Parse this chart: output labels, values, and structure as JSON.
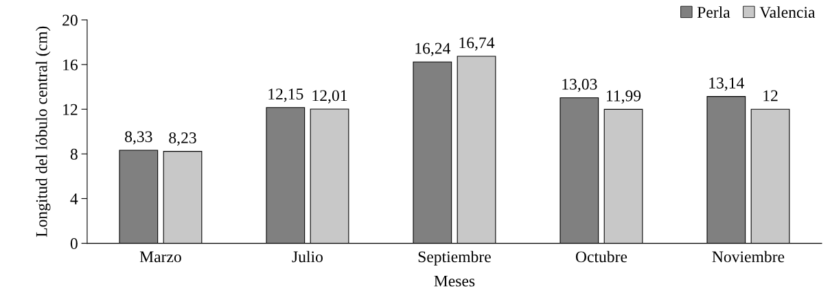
{
  "chart_data": {
    "type": "bar",
    "xlabel": "Meses",
    "ylabel": "Longitud del lóbulo central (cm)",
    "categories": [
      "Marzo",
      "Julio",
      "Septiembre",
      "Octubre",
      "Noviembre"
    ],
    "series": [
      {
        "name": "Perla",
        "color": "#808080",
        "values": [
          8.33,
          12.15,
          16.24,
          13.03,
          13.14
        ],
        "value_labels": [
          "8,33",
          "12,15",
          "16,24",
          "13,03",
          "13,14"
        ]
      },
      {
        "name": "Valencia",
        "color": "#c8c8c8",
        "values": [
          8.23,
          12.01,
          16.74,
          11.99,
          12
        ],
        "value_labels": [
          "8,23",
          "12,01",
          "16,74",
          "11,99",
          "12"
        ]
      }
    ],
    "ylim": [
      0,
      20
    ],
    "yticks": [
      0,
      4,
      8,
      12,
      16,
      20
    ],
    "grid": false,
    "legend": "top right"
  }
}
